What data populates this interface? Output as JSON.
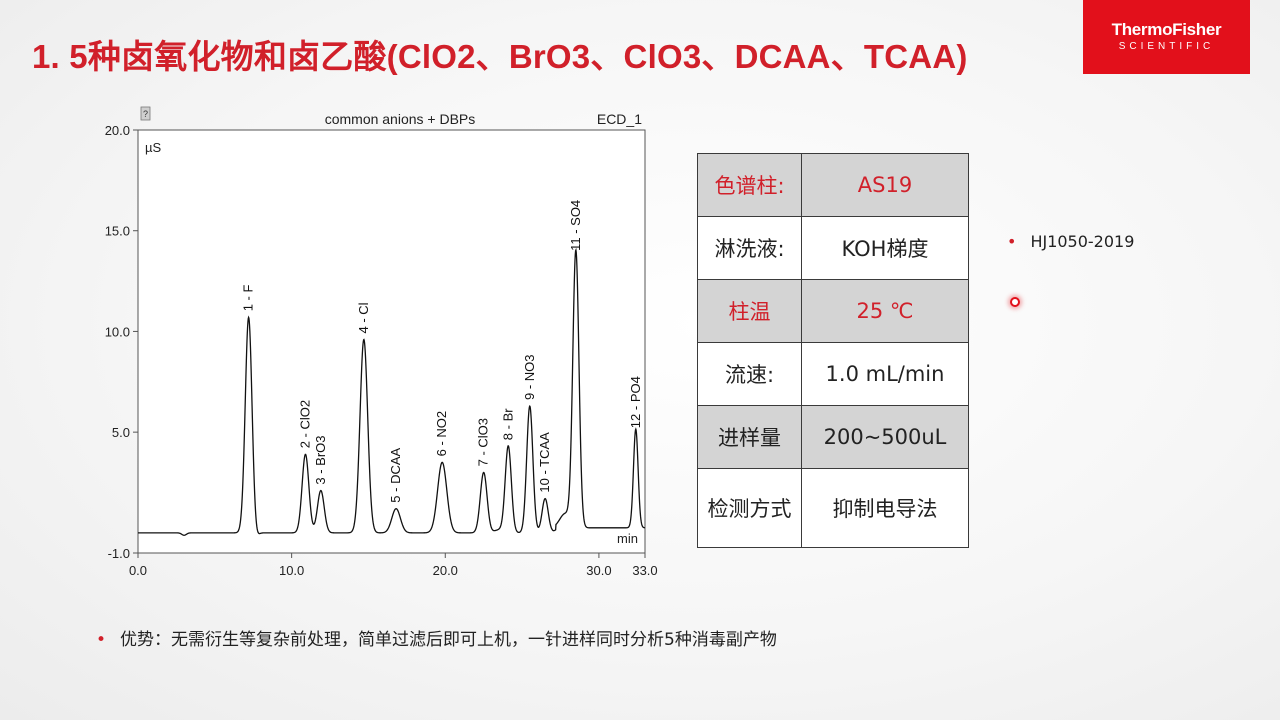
{
  "slide": {
    "title": "1. 5种卤氧化物和卤乙酸(ClO2、BrO3、ClO3、DCAA、TCAA)",
    "logo": {
      "line1": "ThermoFisher",
      "line2": "SCIENTIFIC"
    }
  },
  "chart_data": {
    "type": "line",
    "title": "common anions + DBPs",
    "channel": "ECD_1",
    "ylabel": "µS",
    "xlabel": "min",
    "xlim": [
      0,
      33
    ],
    "ylim": [
      -1,
      20
    ],
    "x_ticks": [
      "0.0",
      "10.0",
      "20.0",
      "30.0",
      "33.0"
    ],
    "y_ticks": [
      "-1.0",
      "5.0",
      "10.0",
      "15.0",
      "20.0"
    ],
    "baseline": 0.0,
    "peaks": [
      {
        "label": "1 - F",
        "time": 7.2,
        "height": 10.7,
        "width": 0.22
      },
      {
        "label": "2 - ClO2",
        "time": 10.9,
        "height": 3.9,
        "width": 0.22
      },
      {
        "label": "3 - BrO3",
        "time": 11.9,
        "height": 2.1,
        "width": 0.22
      },
      {
        "label": "4 - Cl",
        "time": 14.7,
        "height": 9.6,
        "width": 0.25
      },
      {
        "label": "5 - DCAA",
        "time": 16.8,
        "height": 1.2,
        "width": 0.28
      },
      {
        "label": "6 - NO2",
        "time": 19.8,
        "height": 3.5,
        "width": 0.3
      },
      {
        "label": "7 - ClO3",
        "time": 22.5,
        "height": 3.0,
        "width": 0.22
      },
      {
        "label": "8 - Br",
        "time": 24.1,
        "height": 4.3,
        "width": 0.2
      },
      {
        "label": "9 - NO3",
        "time": 25.5,
        "height": 6.3,
        "width": 0.2
      },
      {
        "label": "10 - TCAA",
        "time": 26.5,
        "height": 1.7,
        "width": 0.2
      },
      {
        "label": "11 - SO4",
        "time": 28.5,
        "height": 13.7,
        "width": 0.2
      },
      {
        "label": "12 - PO4",
        "time": 32.4,
        "height": 4.9,
        "width": 0.15
      }
    ]
  },
  "params": [
    {
      "key": "色谱柱:",
      "value": "AS19",
      "highlight": true
    },
    {
      "key": "淋洗液:",
      "value": "KOH梯度",
      "highlight": false
    },
    {
      "key": "柱温",
      "value": "25 ℃",
      "highlight": true
    },
    {
      "key": "流速:",
      "value": "1.0 mL/min",
      "highlight": false
    },
    {
      "key": "进样量",
      "value": "200~500uL",
      "highlight": false
    },
    {
      "key": "检测方式",
      "value": "抑制电导法",
      "highlight": false
    }
  ],
  "standard": "HJ1050-2019",
  "advantage": "优势：无需衍生等复杂前处理，简单过滤后即可上机，一针进样同时分析5种消毒副产物",
  "colors": {
    "accent": "#d1202a",
    "brand": "#e2101b",
    "table_gray": "#d4d4d4"
  }
}
